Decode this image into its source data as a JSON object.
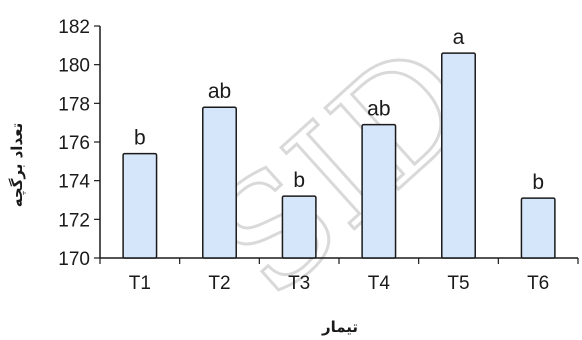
{
  "chart_data": {
    "type": "bar",
    "categories": [
      "T1",
      "T2",
      "T3",
      "T4",
      "T5",
      "T6"
    ],
    "values": [
      175.4,
      177.8,
      173.2,
      176.9,
      180.6,
      173.1
    ],
    "letters": [
      "b",
      "ab",
      "b",
      "ab",
      "a",
      "b"
    ],
    "xlabel": "تیمار",
    "ylabel": "تعداد برگچه",
    "ylim": [
      170,
      182
    ],
    "yticks": [
      "170",
      "172",
      "174",
      "176",
      "178",
      "180",
      "182"
    ],
    "grid": false,
    "legend": "none",
    "bar_fill": "#d6e6fa",
    "bar_stroke": "#1a1a1a"
  },
  "watermark": "SID"
}
